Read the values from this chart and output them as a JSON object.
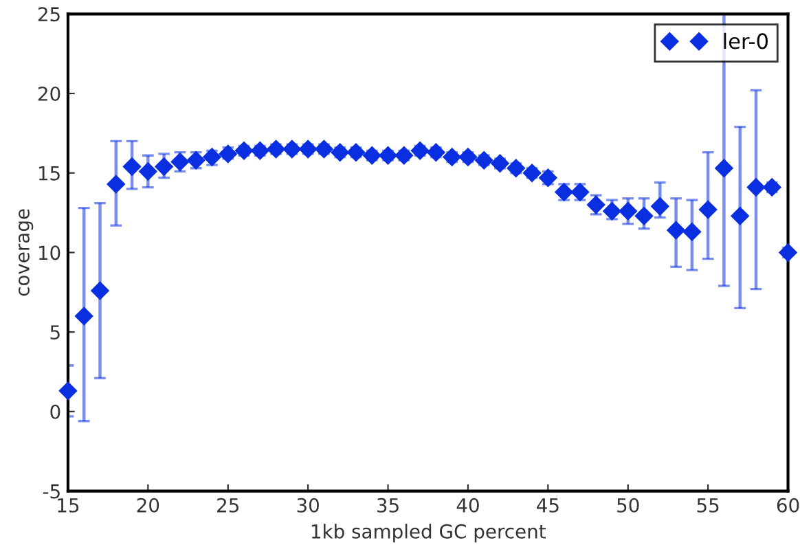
{
  "chart_data": {
    "type": "scatter",
    "xlabel": "1kb sampled GC percent",
    "ylabel": "coverage",
    "xlim": [
      15,
      60
    ],
    "xticks": [
      15,
      20,
      25,
      30,
      35,
      40,
      45,
      50,
      55,
      60
    ],
    "ylim": [
      -5,
      25
    ],
    "yticks": [
      -5,
      0,
      5,
      10,
      15,
      20,
      25
    ],
    "grid": false,
    "legend": "top right",
    "marker": "diamond",
    "series": [
      {
        "name": "ler-0",
        "color": "#0a2fe0",
        "x": [
          15,
          16,
          17,
          18,
          19,
          20,
          21,
          22,
          23,
          24,
          25,
          26,
          27,
          28,
          29,
          30,
          31,
          32,
          33,
          34,
          35,
          36,
          37,
          38,
          39,
          40,
          41,
          42,
          43,
          44,
          45,
          46,
          47,
          48,
          49,
          50,
          51,
          52,
          53,
          54,
          55,
          56,
          57,
          58,
          59,
          60
        ],
        "values": [
          1.3,
          6.0,
          7.6,
          14.3,
          15.4,
          15.1,
          15.4,
          15.7,
          15.8,
          16.0,
          16.2,
          16.4,
          16.4,
          16.5,
          16.5,
          16.5,
          16.5,
          16.3,
          16.3,
          16.1,
          16.1,
          16.1,
          16.4,
          16.3,
          16.0,
          16.0,
          15.8,
          15.6,
          15.3,
          15.0,
          14.7,
          13.8,
          13.8,
          13.0,
          12.6,
          12.6,
          12.3,
          12.9,
          11.4,
          11.3,
          12.7,
          15.3,
          12.3,
          14.1,
          14.1,
          10.0
        ],
        "errors": [
          [
            -0.3,
            2.9
          ],
          [
            -0.6,
            12.8
          ],
          [
            2.1,
            13.1
          ],
          [
            11.7,
            17.0
          ],
          [
            14.0,
            17.0
          ],
          [
            14.1,
            16.1
          ],
          [
            14.7,
            16.2
          ],
          [
            15.1,
            16.3
          ],
          [
            15.3,
            16.3
          ],
          [
            15.5,
            16.4
          ],
          [
            15.9,
            16.6
          ],
          [
            16.1,
            16.7
          ],
          [
            16.1,
            16.7
          ],
          [
            16.2,
            16.8
          ],
          [
            16.2,
            16.8
          ],
          [
            16.2,
            16.8
          ],
          [
            16.2,
            16.8
          ],
          [
            16.0,
            16.6
          ],
          [
            16.0,
            16.6
          ],
          [
            15.8,
            16.4
          ],
          [
            15.8,
            16.4
          ],
          [
            15.8,
            16.4
          ],
          [
            16.1,
            16.7
          ],
          [
            16.0,
            16.6
          ],
          [
            15.7,
            16.3
          ],
          [
            15.7,
            16.3
          ],
          [
            15.5,
            16.1
          ],
          [
            15.3,
            15.9
          ],
          [
            15.0,
            15.6
          ],
          [
            14.7,
            15.3
          ],
          [
            14.3,
            15.1
          ],
          [
            13.3,
            14.3
          ],
          [
            13.3,
            14.3
          ],
          [
            12.4,
            13.6
          ],
          [
            12.1,
            13.3
          ],
          [
            11.8,
            13.4
          ],
          [
            11.5,
            13.4
          ],
          [
            12.2,
            14.4
          ],
          [
            9.1,
            13.4
          ],
          [
            8.9,
            13.3
          ],
          [
            9.6,
            16.3
          ],
          [
            7.9,
            25.0
          ],
          [
            6.5,
            17.9
          ],
          [
            7.7,
            20.2
          ],
          [
            13.8,
            14.4
          ],
          [
            9.7,
            10.3
          ]
        ]
      }
    ]
  }
}
